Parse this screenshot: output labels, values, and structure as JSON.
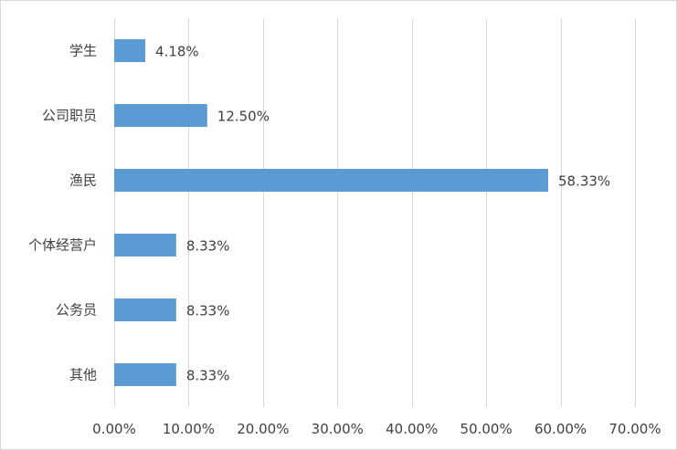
{
  "chart_data": {
    "type": "bar",
    "orientation": "horizontal",
    "categories": [
      "学生",
      "公司职员",
      "渔民",
      "个体经营户",
      "公务员",
      "其他"
    ],
    "values": [
      4.18,
      12.5,
      58.33,
      8.33,
      8.33,
      8.33
    ],
    "value_labels": [
      "4.18%",
      "12.50%",
      "58.33%",
      "8.33%",
      "8.33%",
      "8.33%"
    ],
    "xlim": [
      0,
      70
    ],
    "xticks": [
      0,
      10,
      20,
      30,
      40,
      50,
      60,
      70
    ],
    "xtick_labels": [
      "0.00%",
      "10.00%",
      "20.00%",
      "30.00%",
      "40.00%",
      "50.00%",
      "60.00%",
      "70.00%"
    ],
    "grid": "vertical",
    "legend": "none",
    "title": "",
    "xlabel": "",
    "ylabel": "",
    "bar_color": "#5b9bd5",
    "grid_color": "#d9d9d9",
    "text_color": "#404040"
  }
}
